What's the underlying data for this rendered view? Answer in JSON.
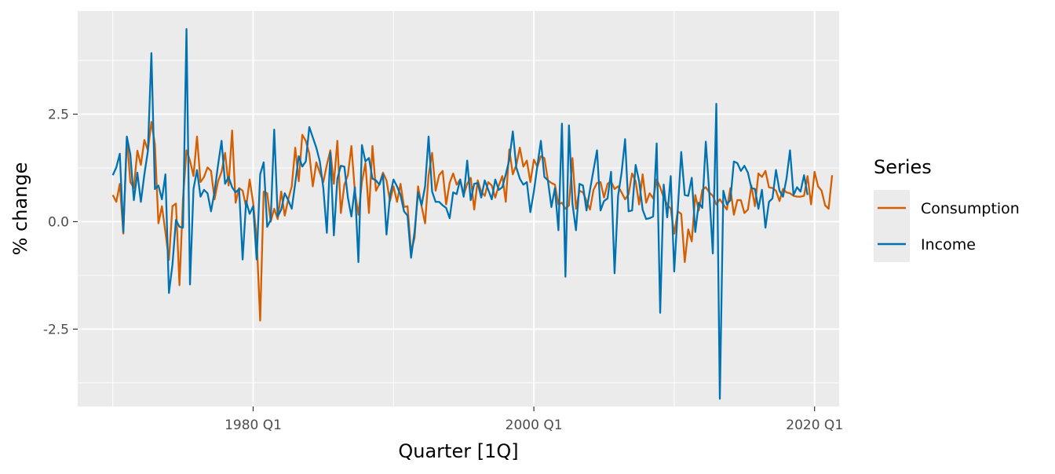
{
  "chart_data": {
    "type": "line",
    "xlabel": "Quarter [1Q]",
    "ylabel": "% change",
    "x_tick_labels": [
      "1980 Q1",
      "2000 Q1",
      "2020 Q1"
    ],
    "x_ticks": [
      1980,
      2000,
      2020
    ],
    "y_ticks": [
      -2.5,
      0.0,
      2.5
    ],
    "y_tick_labels": [
      "-2.5",
      "0.0",
      "2.5"
    ],
    "xlim": [
      1967.5,
      2021.75
    ],
    "ylim": [
      -4.3,
      4.9
    ],
    "grid": true,
    "legend": {
      "title": "Series",
      "position": "right"
    },
    "x_start": 1970.0,
    "x_step": 0.25,
    "series": [
      {
        "name": "Consumption",
        "color": "#d55e00",
        "values": [
          0.62,
          0.46,
          0.88,
          -0.28,
          1.96,
          0.92,
          0.78,
          1.65,
          1.32,
          1.9,
          1.66,
          2.32,
          1.8,
          -0.04,
          0.36,
          -0.25,
          -0.89,
          0.36,
          0.42,
          -1.48,
          0.52,
          1.66,
          1.42,
          1.06,
          1.98,
          0.92,
          1.04,
          1.26,
          1.18,
          0.52,
          0.94,
          1.16,
          1.6,
          0.84,
          2.12,
          0.44,
          0.78,
          0.72,
          0.34,
          0.98,
          0.44,
          -0.4,
          -2.3,
          0.7,
          0.66,
          0.0,
          0.3,
          0.06,
          0.7,
          0.14,
          0.52,
          0.82,
          1.72,
          0.94,
          2.02,
          1.88,
          1.58,
          0.82,
          1.38,
          1.14,
          0.92,
          1.32,
          1.66,
          0.88,
          1.88,
          0.2,
          0.86,
          1.08,
          1.76,
          0.7,
          0.16,
          0.92,
          1.36,
          0.2,
          1.76,
          0.72,
          0.88,
          1.14,
          0.96,
          0.48,
          0.82,
          0.46,
          0.88,
          0.34,
          0.36,
          -0.7,
          -0.38,
          0.82,
          0.36,
          -0.04,
          1.08,
          1.6,
          0.72,
          1.08,
          1.18,
          0.4,
          0.9,
          1.12,
          0.86,
          0.98,
          0.62,
          0.88,
          1.02,
          0.28,
          0.96,
          0.7,
          0.6,
          0.92,
          0.84,
          0.56,
          0.84,
          1.06,
          0.46,
          1.68,
          1.1,
          1.32,
          1.72,
          1.28,
          1.42,
          0.92,
          1.44,
          1.28,
          1.52,
          1.48,
          0.96,
          0.9,
          0.86,
          0.4,
          0.44,
          0.3,
          0.38,
          1.48,
          0.3,
          0.72,
          0.68,
          0.48,
          0.28,
          0.74,
          0.9,
          0.92,
          0.56,
          0.88,
          0.94,
          0.76,
          0.82,
          0.68,
          0.52,
          0.64,
          1.12,
          0.94,
          0.4,
          1.1,
          0.44,
          0.66,
          0.54,
          0.98,
          0.8,
          0.56,
          0.4,
          0.3,
          -0.28,
          0.24,
          0.18,
          -0.94,
          -0.18,
          -0.46,
          0.62,
          0.26,
          0.74,
          0.8,
          0.68,
          0.6,
          0.4,
          0.52,
          0.4,
          0.28,
          0.78,
          0.16,
          0.5,
          0.5,
          0.2,
          0.28,
          0.84,
          0.36,
          1.12,
          1.04,
          1.18,
          0.8,
          0.78,
          0.72,
          0.48,
          0.76,
          0.68,
          0.66,
          0.6,
          0.58,
          0.58,
          0.6,
          1.06,
          0.4,
          1.16,
          0.82,
          0.72,
          0.38,
          0.3,
          1.08
        ]
      },
      {
        "name": "Income",
        "color": "#0072b2",
        "values": [
          1.08,
          1.26,
          1.58,
          -0.24,
          1.98,
          1.56,
          0.5,
          1.14,
          0.46,
          1.1,
          1.64,
          3.92,
          0.76,
          0.84,
          0.52,
          1.1,
          -1.66,
          -1.0,
          0.04,
          -0.12,
          -0.14,
          4.48,
          -1.46,
          0.76,
          1.2,
          0.58,
          0.74,
          0.66,
          0.24,
          0.7,
          1.32,
          1.88,
          0.88,
          1.04,
          0.8,
          0.68,
          0.76,
          -0.88,
          0.48,
          0.18,
          0.36,
          -0.88,
          1.1,
          1.38,
          -0.12,
          0.04,
          2.14,
          0.12,
          0.28,
          0.66,
          0.5,
          0.3,
          0.9,
          1.52,
          1.28,
          1.4,
          2.2,
          1.96,
          1.72,
          1.4,
          0.78,
          -0.26,
          1.6,
          -0.32,
          1.0,
          1.3,
          1.28,
          0.56,
          0.12,
          0.8,
          -0.94,
          1.78,
          1.4,
          1.48,
          1.0,
          0.96,
          0.86,
          1.1,
          -0.3,
          0.6,
          0.98,
          0.82,
          0.62,
          0.24,
          0.14,
          -0.84,
          -0.24,
          0.68,
          0.38,
          0.82,
          1.98,
          0.7,
          0.46,
          0.46,
          0.38,
          0.32,
          0.08,
          0.68,
          0.64,
          0.98,
          0.58,
          1.42,
          0.5,
          0.88,
          0.9,
          0.56,
          0.96,
          0.74,
          0.52,
          0.98,
          0.74,
          0.8,
          1.1,
          1.44,
          2.1,
          1.26,
          1.0,
          0.86,
          0.92,
          0.22,
          0.7,
          1.3,
          1.88,
          1.04,
          0.96,
          0.34,
          0.78,
          -0.2,
          2.28,
          -1.28,
          2.24,
          0.42,
          -0.2,
          0.88,
          0.84,
          0.26,
          0.74,
          1.2,
          1.66,
          0.26,
          0.48,
          0.54,
          1.16,
          -1.2,
          0.6,
          1.14,
          1.92,
          0.24,
          0.26,
          1.32,
          0.94,
          0.28,
          0.06,
          0.08,
          0.12,
          1.82,
          -2.12,
          0.86,
          0.1,
          1.06,
          -1.16,
          0.26,
          1.62,
          0.62,
          0.6,
          1.02,
          -0.24,
          0.44,
          0.32,
          1.86,
          0.66,
          -0.74,
          2.74,
          -4.12,
          0.72,
          0.4,
          0.5,
          1.4,
          1.36,
          1.18,
          1.3,
          1.14,
          0.78,
          0.76,
          0.3,
          0.74,
          -0.14,
          0.46,
          0.54,
          1.2,
          0.72,
          0.58,
          1.0,
          1.66,
          0.62,
          0.8,
          0.7,
          1.08,
          0.62
        ]
      }
    ]
  }
}
